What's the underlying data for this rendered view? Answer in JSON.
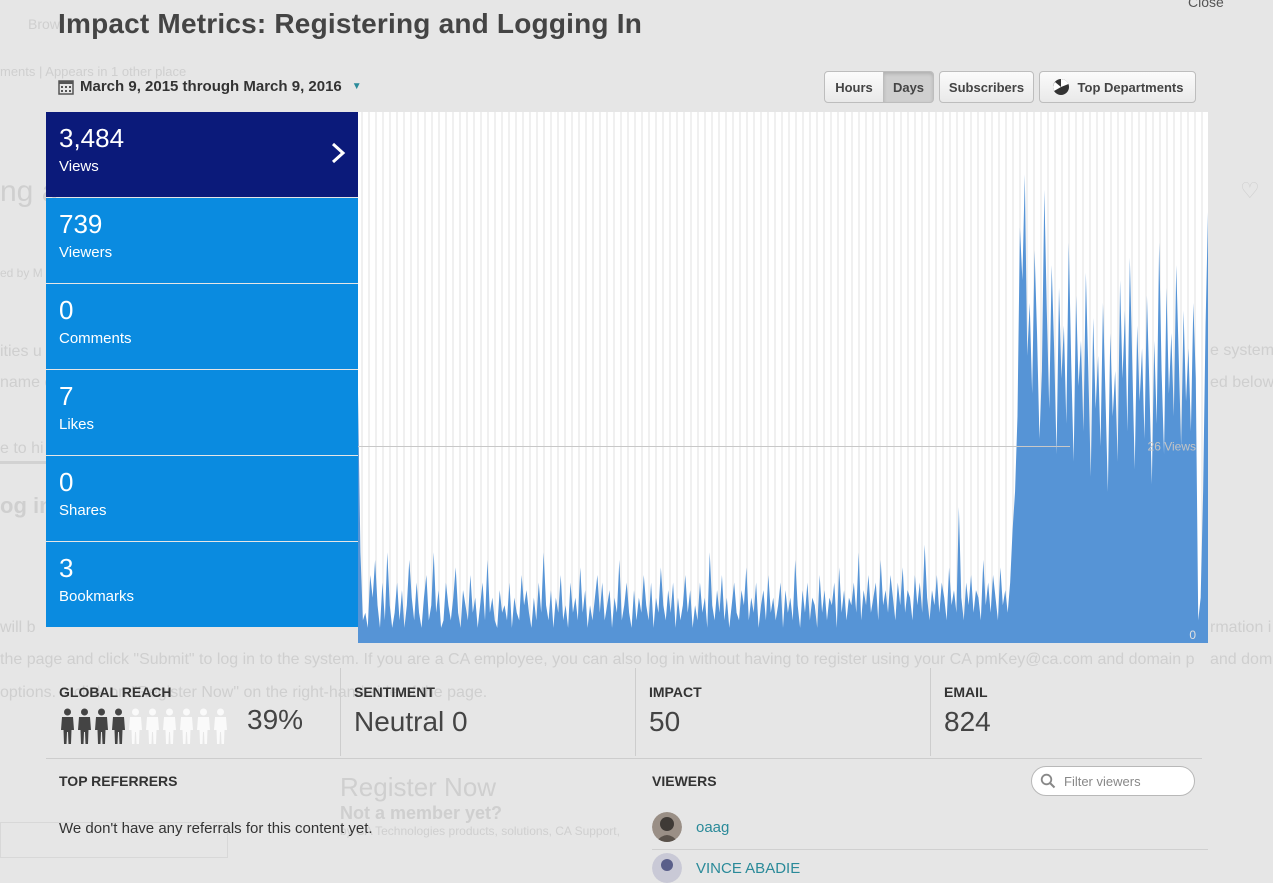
{
  "modal": {
    "title": "Impact Metrics: Registering and Logging In",
    "close_label": "Close"
  },
  "date_range": {
    "label": "March 9, 2015 through March 9, 2016"
  },
  "toggles": {
    "hours": "Hours",
    "days": "Days",
    "selected": "Days",
    "subscribers": "Subscribers",
    "top_departments": "Top Departments"
  },
  "metrics": [
    {
      "value": "3,484",
      "label": "Views",
      "active": true
    },
    {
      "value": "739",
      "label": "Viewers"
    },
    {
      "value": "0",
      "label": "Comments"
    },
    {
      "value": "7",
      "label": "Likes"
    },
    {
      "value": "0",
      "label": "Shares"
    },
    {
      "value": "3",
      "label": "Bookmarks"
    }
  ],
  "chart_data": {
    "type": "area",
    "series_color": "#5694d6",
    "grid": "vertical stripes",
    "reference_line": {
      "value": 26,
      "label": "26 Views"
    },
    "ylim": [
      0,
      70
    ],
    "baseline_label": "0",
    "values": [
      33,
      12,
      3,
      4,
      2,
      9,
      6,
      11,
      5,
      2,
      8,
      3,
      12,
      5,
      2,
      4,
      8,
      3,
      7,
      2,
      5,
      11,
      6,
      3,
      8,
      4,
      2,
      6,
      9,
      3,
      5,
      12,
      4,
      7,
      2,
      3,
      8,
      5,
      3,
      6,
      10,
      4,
      2,
      7,
      5,
      3,
      9,
      4,
      6,
      2,
      5,
      8,
      3,
      11,
      4,
      6,
      3,
      2,
      7,
      4,
      5,
      3,
      8,
      2,
      6,
      4,
      3,
      9,
      5,
      7,
      4,
      2,
      6,
      3,
      8,
      4,
      12,
      5,
      3,
      7,
      2,
      6,
      4,
      9,
      3,
      5,
      2,
      8,
      4,
      6,
      3,
      10,
      4,
      7,
      2,
      5,
      3,
      6,
      9,
      4,
      8,
      3,
      5,
      7,
      2,
      6,
      4,
      11,
      3,
      5,
      8,
      4,
      2,
      7,
      3,
      6,
      4,
      9,
      5,
      3,
      8,
      2,
      6,
      4,
      10,
      5,
      3,
      7,
      4,
      8,
      2,
      6,
      3,
      5,
      9,
      4,
      7,
      2,
      5,
      3,
      8,
      4,
      6,
      2,
      12,
      5,
      3,
      7,
      4,
      9,
      3,
      6,
      2,
      5,
      8,
      4,
      3,
      7,
      5,
      10,
      3,
      6,
      4,
      8,
      2,
      5,
      7,
      3,
      9,
      4,
      6,
      3,
      5,
      8,
      2,
      7,
      4,
      6,
      3,
      11,
      5,
      2,
      7,
      4,
      8,
      3,
      6,
      5,
      2,
      9,
      4,
      7,
      3,
      6,
      5,
      8,
      2,
      10,
      4,
      7,
      3,
      6,
      5,
      8,
      4,
      12,
      3,
      7,
      5,
      9,
      4,
      6,
      8,
      3,
      11,
      5,
      7,
      4,
      9,
      6,
      3,
      8,
      5,
      10,
      4,
      7,
      6,
      3,
      9,
      5,
      8,
      4,
      13,
      6,
      3,
      7,
      5,
      9,
      4,
      8,
      6,
      3,
      10,
      5,
      7,
      4,
      18,
      6,
      3,
      8,
      5,
      9,
      4,
      7,
      6,
      3,
      11,
      5,
      8,
      4,
      9,
      6,
      3,
      10,
      5,
      7,
      4,
      8,
      15,
      20,
      30,
      55,
      48,
      62,
      38,
      45,
      33,
      52,
      41,
      27,
      36,
      60,
      44,
      31,
      50,
      39,
      25,
      47,
      35,
      42,
      29,
      53,
      37,
      24,
      46,
      34,
      40,
      28,
      49,
      36,
      22,
      43,
      31,
      38,
      26,
      45,
      33,
      20,
      41,
      30,
      36,
      24,
      48,
      35,
      44,
      28,
      51,
      37,
      23,
      42,
      32,
      39,
      27,
      46,
      34,
      21,
      40,
      29,
      53,
      36,
      25,
      47,
      33,
      41,
      30,
      50,
      38,
      26,
      44,
      32,
      39,
      28,
      45,
      35,
      3,
      6,
      20,
      42,
      57
    ],
    "xlabel": "",
    "ylabel": ""
  },
  "stats": {
    "global_reach": {
      "label": "GLOBAL REACH",
      "value": "39%",
      "filled": 4,
      "total": 10
    },
    "sentiment": {
      "label": "SENTIMENT",
      "value": "Neutral 0"
    },
    "impact": {
      "label": "IMPACT",
      "value": "50"
    },
    "email": {
      "label": "EMAIL",
      "value": "824"
    }
  },
  "referrers": {
    "title": "TOP REFERRERS",
    "empty_text": "We don't have any referrals for this content yet."
  },
  "viewers": {
    "title": "VIEWERS",
    "filter_placeholder": "Filter viewers",
    "list": [
      {
        "name": "oaag"
      },
      {
        "name": "VINCE ABADIE"
      }
    ]
  },
  "background_page": {
    "t1": "Brow",
    "t2": "ments  |  Appears in 1 other place",
    "t3": "ng a",
    "t4": "ed by M",
    "t5": "ities u",
    "t6": "name o",
    "t7": "e to hi",
    "t8": "og in",
    "t9": "will b",
    "t10": "the page and click \"Submit\" to log in to the system. If you are a CA employee, you can also log in without having to register using your CA pmKey@ca.com and domain p",
    "t11": "options.    ...click on \"Register Now\" on the right-hand side of the page.",
    "t12": "Register Now",
    "t13": "Not a member yet?",
    "t14": "by CA Technologies products, solutions, CA Support,",
    "t15": "e system",
    "t16": "ed below",
    "t17": "rmation i",
    "t18": "and domain p"
  }
}
